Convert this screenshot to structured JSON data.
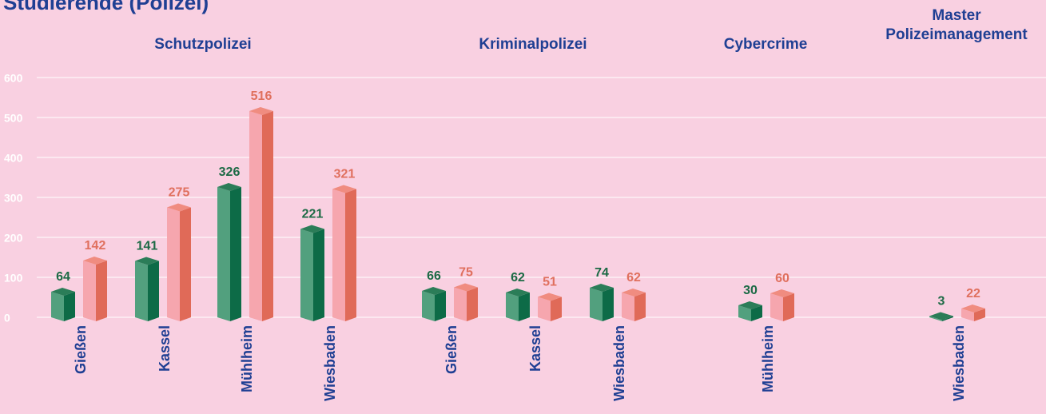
{
  "chart_data": {
    "type": "bar3d",
    "title": "Studierende (Polizei)",
    "groups": [
      {
        "label": "Schutzpolizei",
        "categories": [
          "Gießen",
          "Kassel",
          "Mühlheim",
          "Wiesbaden"
        ]
      },
      {
        "label": "Kriminalpolizei",
        "categories": [
          "Gießen",
          "Kassel",
          "Wiesbaden"
        ]
      },
      {
        "label": "Cybercrime",
        "categories": [
          "Mühlheim"
        ]
      },
      {
        "label": "Master Polizeimanagement",
        "categories": [
          "Wiesbaden"
        ]
      }
    ],
    "series": [
      {
        "color": "#2f8a62",
        "values": [
          64,
          141,
          326,
          221,
          66,
          62,
          74,
          30,
          3
        ]
      },
      {
        "color": "#f4a2aa",
        "values": [
          142,
          275,
          516,
          321,
          75,
          51,
          62,
          60,
          22
        ]
      }
    ],
    "ylim": [
      0,
      600
    ],
    "yticks": [
      0,
      100,
      200,
      300,
      400,
      500,
      600
    ],
    "grid": true
  }
}
